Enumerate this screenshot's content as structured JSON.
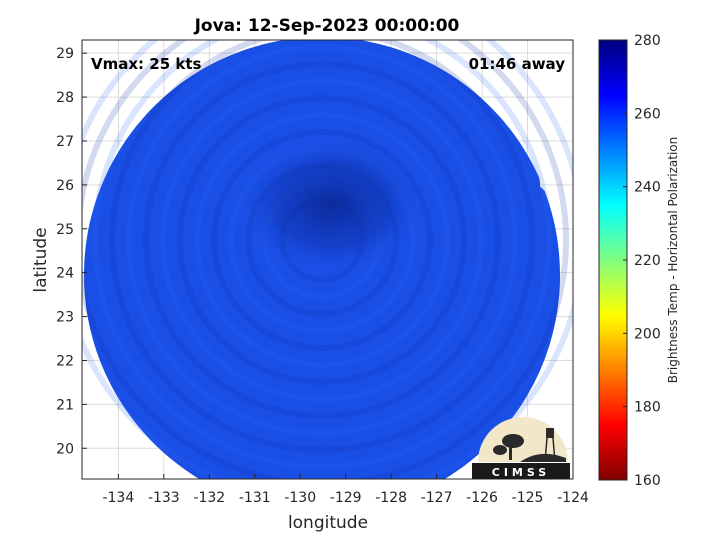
{
  "chart_data": {
    "type": "heatmap",
    "title": "Jova: 12-Sep-2023 00:00:00",
    "xlabel": "longitude",
    "ylabel": "latitude",
    "xlim": [
      -134.8,
      -124
    ],
    "ylim": [
      19.3,
      29.3
    ],
    "xticks": [
      -134,
      -133,
      -132,
      -131,
      -130,
      -129,
      -128,
      -127,
      -126,
      -125,
      -124
    ],
    "yticks": [
      20,
      21,
      22,
      23,
      24,
      25,
      26,
      27,
      28,
      29
    ],
    "grid": true,
    "annotations": {
      "top_left": "Vmax: 25 kts",
      "top_right": "01:46 away"
    },
    "storm_center": [
      -129.3,
      25.2
    ],
    "colorbar": {
      "label": "Brightness Temp - Horizontal Polarization",
      "min": 160,
      "max": 280,
      "ticks": [
        160,
        180,
        200,
        220,
        240,
        260,
        280
      ],
      "colormap": "jet"
    },
    "field_value_range": [
      250,
      275
    ],
    "logo_text": "CIMSS",
    "colors": {
      "field_base": "#1a4fe6",
      "field_dark": "#0b2a9e",
      "field_light": "#2f6cf5"
    }
  }
}
